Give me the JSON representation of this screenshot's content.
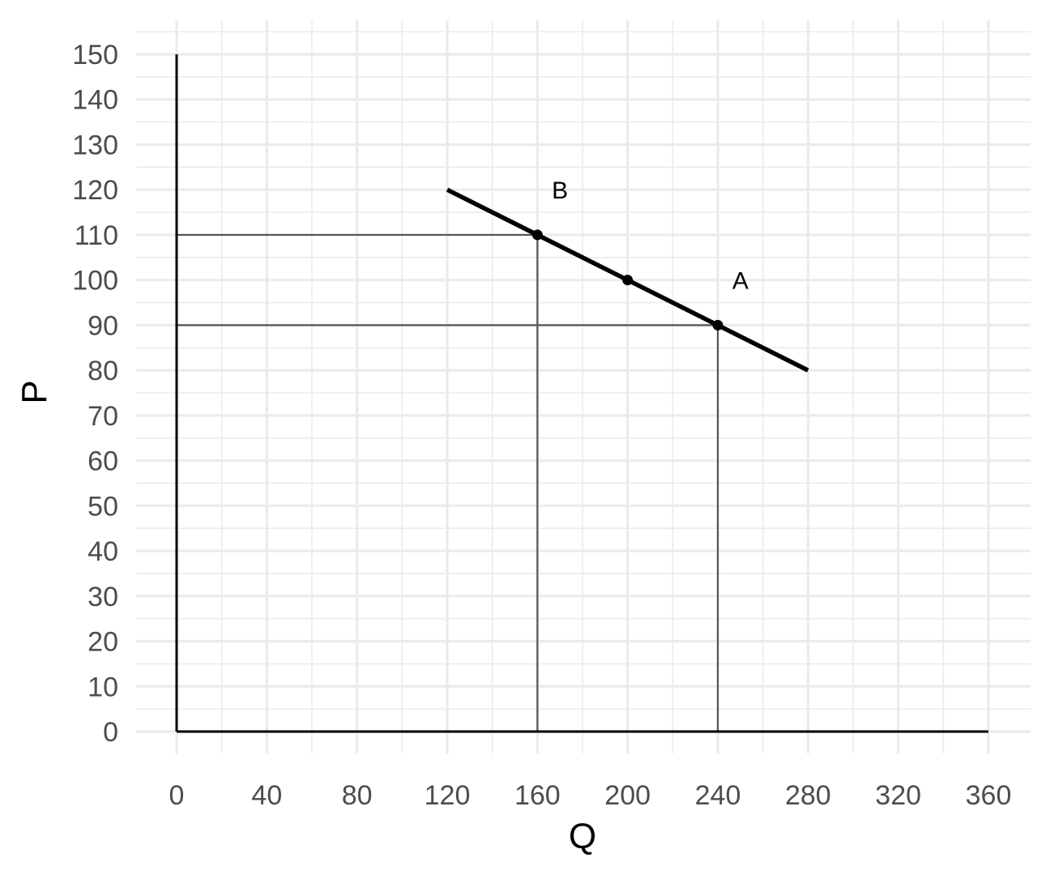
{
  "chart_data": {
    "type": "line",
    "title": "",
    "xlabel": "Q",
    "ylabel": "P",
    "xlim": [
      0,
      360
    ],
    "ylim": [
      0,
      150
    ],
    "x_ticks": [
      0,
      40,
      80,
      120,
      160,
      200,
      240,
      280,
      320,
      360
    ],
    "y_ticks": [
      0,
      10,
      20,
      30,
      40,
      50,
      60,
      70,
      80,
      90,
      100,
      110,
      120,
      130,
      140,
      150
    ],
    "grid": true,
    "legend": "none",
    "series": [
      {
        "x": [
          120,
          280
        ],
        "y": [
          120,
          80
        ]
      }
    ],
    "points": [
      {
        "x": 160,
        "y": 110
      },
      {
        "x": 200,
        "y": 100
      },
      {
        "x": 240,
        "y": 90
      }
    ],
    "annotations": [
      {
        "text": "B",
        "x": 170,
        "y": 120
      },
      {
        "text": "A",
        "x": 250,
        "y": 100
      }
    ],
    "reference_lines": [
      {
        "x": 160,
        "y": 110
      },
      {
        "x": 240,
        "y": 90
      }
    ],
    "colors": {
      "line": "#000000",
      "grid": "#ebebeb",
      "reference": "#555555",
      "tick_text": "#4d4d4d"
    }
  }
}
